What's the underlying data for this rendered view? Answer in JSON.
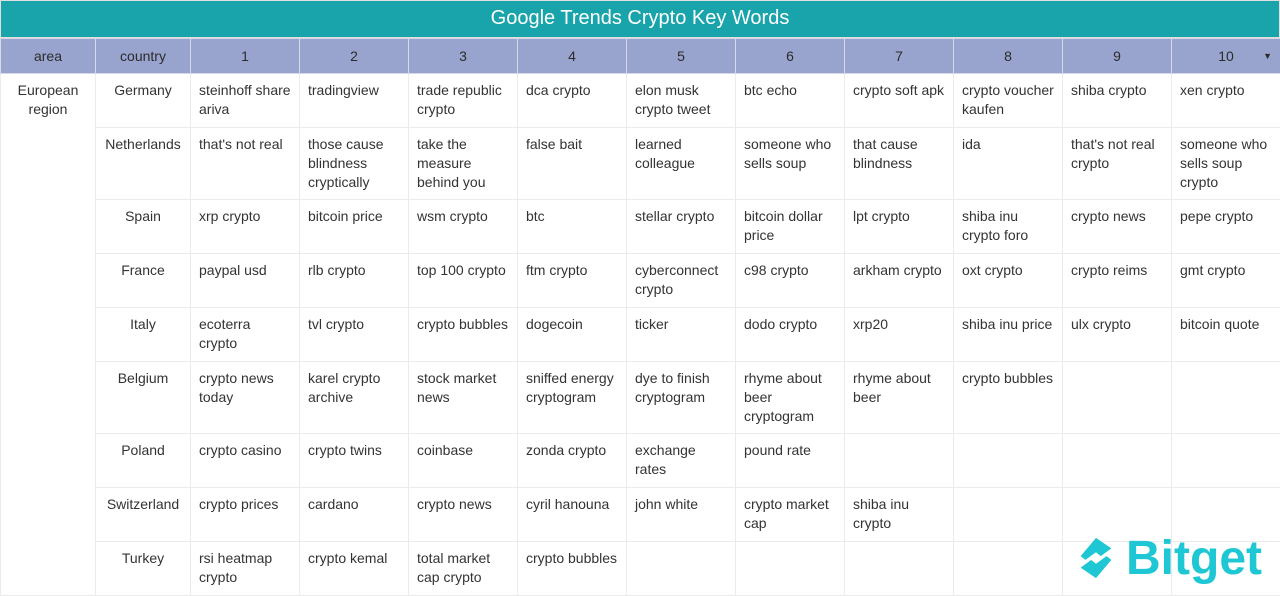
{
  "title": "Google Trends Crypto Key Words",
  "columns": [
    "area",
    "country",
    "1",
    "2",
    "3",
    "4",
    "5",
    "6",
    "7",
    "8",
    "9",
    "10"
  ],
  "sort_column_index": 11,
  "area": "European region",
  "rows": [
    {
      "country": "Germany",
      "kw": [
        "steinhoff share ariva",
        "tradingview",
        "trade republic crypto",
        "dca crypto",
        "elon musk crypto tweet",
        "btc echo",
        "crypto soft apk",
        "crypto voucher kaufen",
        "shiba crypto",
        "xen crypto"
      ]
    },
    {
      "country": "Netherlands",
      "kw": [
        "that's not real",
        "those cause blindness cryptically",
        "take the measure behind you",
        "false bait",
        "learned colleague",
        "someone who sells soup",
        "that cause blindness",
        "ida",
        "that's not real crypto",
        "someone who sells soup crypto"
      ]
    },
    {
      "country": "Spain",
      "kw": [
        "xrp crypto",
        "bitcoin price",
        "wsm crypto",
        "btc",
        "stellar crypto",
        "bitcoin dollar price",
        "lpt crypto",
        "shiba inu crypto foro",
        "crypto news",
        "pepe crypto"
      ]
    },
    {
      "country": "France",
      "kw": [
        "paypal usd",
        "rlb crypto",
        "top 100 crypto",
        "ftm crypto",
        "cyberconnect crypto",
        "c98 crypto",
        "arkham crypto",
        "oxt crypto",
        "crypto reims",
        "gmt crypto"
      ]
    },
    {
      "country": "Italy",
      "kw": [
        "ecoterra crypto",
        "tvl crypto",
        "crypto bubbles",
        "dogecoin",
        "ticker",
        "dodo crypto",
        "xrp20",
        "shiba inu price",
        "ulx crypto",
        "bitcoin quote"
      ]
    },
    {
      "country": "Belgium",
      "kw": [
        "crypto news today",
        "karel crypto archive",
        "stock market news",
        "sniffed energy cryptogram",
        "dye to finish cryptogram",
        "rhyme about beer cryptogram",
        "rhyme about beer",
        "crypto bubbles",
        "",
        ""
      ]
    },
    {
      "country": "Poland",
      "kw": [
        "crypto casino",
        "crypto twins",
        "coinbase",
        "zonda crypto",
        "exchange rates",
        "pound rate",
        "",
        "",
        "",
        ""
      ]
    },
    {
      "country": "Switzerland",
      "kw": [
        "crypto prices",
        "cardano",
        "crypto news",
        "cyril hanouna",
        "john white",
        "crypto market cap",
        "shiba inu crypto",
        "",
        "",
        ""
      ]
    },
    {
      "country": "Turkey",
      "kw": [
        "rsi heatmap crypto",
        "crypto kemal",
        "total market cap crypto",
        "crypto bubbles",
        "",
        "",
        "",
        "",
        "",
        ""
      ]
    }
  ],
  "logo_text": "Bitget",
  "colors": {
    "title_bg": "#19a3aa",
    "header_bg": "#99a4ce",
    "border": "#ebebeb",
    "logo": "#1fc7d4"
  }
}
